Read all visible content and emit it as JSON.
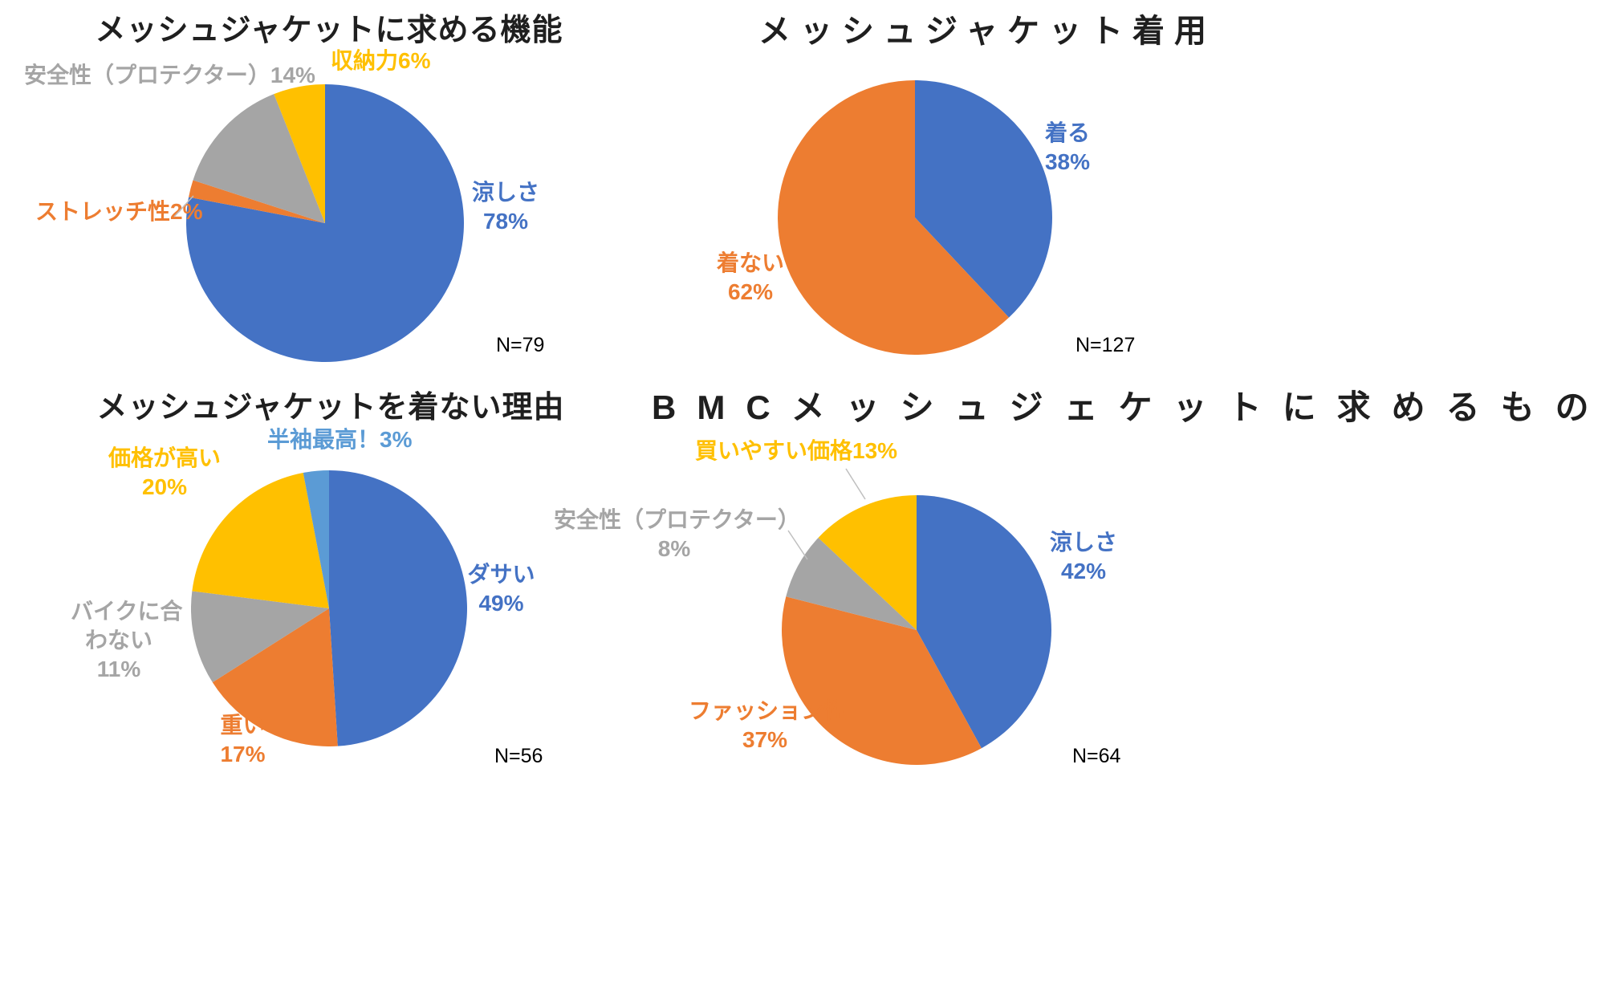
{
  "page": {
    "background": "#FFFFFF"
  },
  "palette": {
    "blue": "#4472C4",
    "orange": "#ED7D31",
    "gray": "#A5A5A5",
    "yellow": "#FFC000",
    "light_blue": "#5B9BD5",
    "title_text": "#1F1F1F",
    "leader_line": "#BFBFBF"
  },
  "chart_data": [
    {
      "type": "pie",
      "title": "メッシュジャケットに求める機能",
      "n_label": "N=79",
      "start_angle": "12-oclock",
      "direction": "clockwise",
      "legend": "none",
      "categories": [
        "涼しさ",
        "ストレッチ性",
        "安全性（プロテクター）",
        "収納力"
      ],
      "values": [
        78,
        2,
        14,
        6
      ],
      "colors": [
        "#4472C4",
        "#ED7D31",
        "#A5A5A5",
        "#FFC000"
      ],
      "labels": {
        "cool_line1": "涼しさ",
        "cool_line2": "78%",
        "stretch": "ストレッチ性2%",
        "safety": "安全性（プロテクター）14%",
        "storage": "収納力6%"
      }
    },
    {
      "type": "pie",
      "title": "メッシュジャケット着用",
      "n_label": "N=127",
      "start_angle": "12-oclock",
      "direction": "clockwise",
      "legend": "none",
      "categories": [
        "着る",
        "着ない"
      ],
      "values": [
        38,
        62
      ],
      "colors": [
        "#4472C4",
        "#ED7D31"
      ],
      "labels": {
        "wear_line1": "着る",
        "wear_line2": "38%",
        "not_wear_line1": "着ない",
        "not_wear_line2": "62%"
      }
    },
    {
      "type": "pie",
      "title": "メッシュジャケットを着ない理由",
      "n_label": "N=56",
      "start_angle": "12-oclock",
      "direction": "clockwise",
      "legend": "none",
      "categories": [
        "ダサい",
        "重い",
        "バイクに合わない",
        "価格が高い",
        "半袖最高！"
      ],
      "values": [
        49,
        17,
        11,
        20,
        3
      ],
      "colors": [
        "#4472C4",
        "#ED7D31",
        "#A5A5A5",
        "#FFC000",
        "#5B9BD5"
      ],
      "labels": {
        "dasai_line1": "ダサい",
        "dasai_line2": "49%",
        "heavy_line1": "重い",
        "heavy_line2": "17%",
        "bike_line1": "バイクに合",
        "bike_line2": "わない",
        "bike_line3": "11%",
        "price_line1": "価格が高い",
        "price_line2": "20%",
        "sleeve": "半袖最高！3%"
      }
    },
    {
      "type": "pie",
      "title": "BMCメッシュジェケットに求めるもの",
      "n_label": "N=64",
      "start_angle": "12-oclock",
      "direction": "clockwise",
      "legend": "none",
      "categories": [
        "涼しさ",
        "ファッション性",
        "安全性（プロテクター）",
        "買いやすい価格"
      ],
      "values": [
        42,
        37,
        8,
        13
      ],
      "colors": [
        "#4472C4",
        "#ED7D31",
        "#A5A5A5",
        "#FFC000"
      ],
      "labels": {
        "cool_line1": "涼しさ",
        "cool_line2": "42%",
        "fashion_line1": "ファッション性",
        "fashion_line2": "37%",
        "safety_line1": "安全性（プロテクター）",
        "safety_line2": "8%",
        "price": "買いやすい価格13%"
      }
    }
  ]
}
